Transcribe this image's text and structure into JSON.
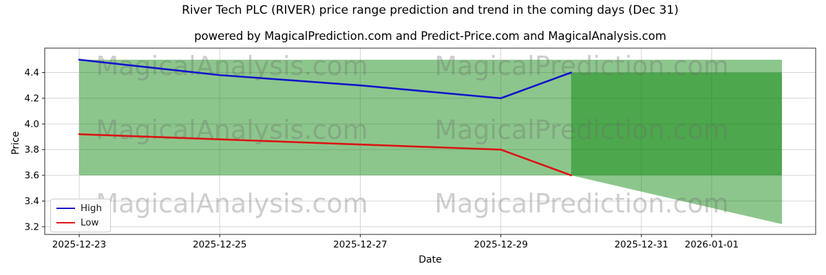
{
  "title": "River Tech PLC (RIVER) price range prediction and trend in the coming days (Dec 31)",
  "subtitle": "powered by MagicalPrediction.com and Predict-Price.com and MagicalAnalysis.com",
  "chart_data": {
    "type": "line",
    "title": "River Tech PLC (RIVER) price range prediction and trend in the coming days (Dec 31)",
    "xlabel": "Date",
    "ylabel": "Price",
    "grid": true,
    "legend_position": "lower left",
    "ylim": [
      3.14,
      4.59
    ],
    "xlim_days": [
      -0.49,
      10.48
    ],
    "y_ticks": [
      "3.2",
      "3.4",
      "3.6",
      "3.8",
      "4.0",
      "4.2",
      "4.4"
    ],
    "x_ticks": [
      {
        "label": "2025-12-23",
        "day": 0
      },
      {
        "label": "2025-12-25",
        "day": 2
      },
      {
        "label": "2025-12-27",
        "day": 4
      },
      {
        "label": "2025-12-29",
        "day": 6
      },
      {
        "label": "2025-12-31",
        "day": 8
      },
      {
        "label": "2026-01-01",
        "day": 9
      }
    ],
    "series": [
      {
        "name": "High",
        "color": "#1212cc",
        "dates": [
          "2025-12-23",
          "2025-12-24",
          "2025-12-25",
          "2025-12-26",
          "2025-12-27",
          "2025-12-28",
          "2025-12-29",
          "2025-12-30"
        ],
        "days": [
          0,
          1,
          2,
          3,
          4,
          5,
          6,
          7
        ],
        "values": [
          4.5,
          4.44,
          4.38,
          4.34,
          4.3,
          4.25,
          4.2,
          4.4
        ]
      },
      {
        "name": "Low",
        "color": "#dd1111",
        "dates": [
          "2025-12-23",
          "2025-12-24",
          "2025-12-25",
          "2025-12-26",
          "2025-12-27",
          "2025-12-28",
          "2025-12-29",
          "2025-12-30"
        ],
        "days": [
          0,
          1,
          2,
          3,
          4,
          5,
          6,
          7
        ],
        "values": [
          3.92,
          3.9,
          3.88,
          3.86,
          3.84,
          3.82,
          3.8,
          3.6
        ]
      }
    ],
    "bands": {
      "fill_color": "rgba(0,128,0,0.45)",
      "range_band": {
        "comment": "light green envelope",
        "start_day": 0,
        "end_day": 10,
        "top": 4.5,
        "bottom_left": 3.6,
        "bottom_flat_until_day": 7,
        "bottom_at_end": 3.22
      },
      "prediction_box": {
        "comment": "darker green forecast box (band overlapped twice)",
        "start_day": 7,
        "end_day": 10,
        "low": 3.6,
        "high": 4.4
      }
    },
    "watermarks": [
      "MagicalAnalysis.com",
      "MagicalPrediction.com"
    ]
  }
}
